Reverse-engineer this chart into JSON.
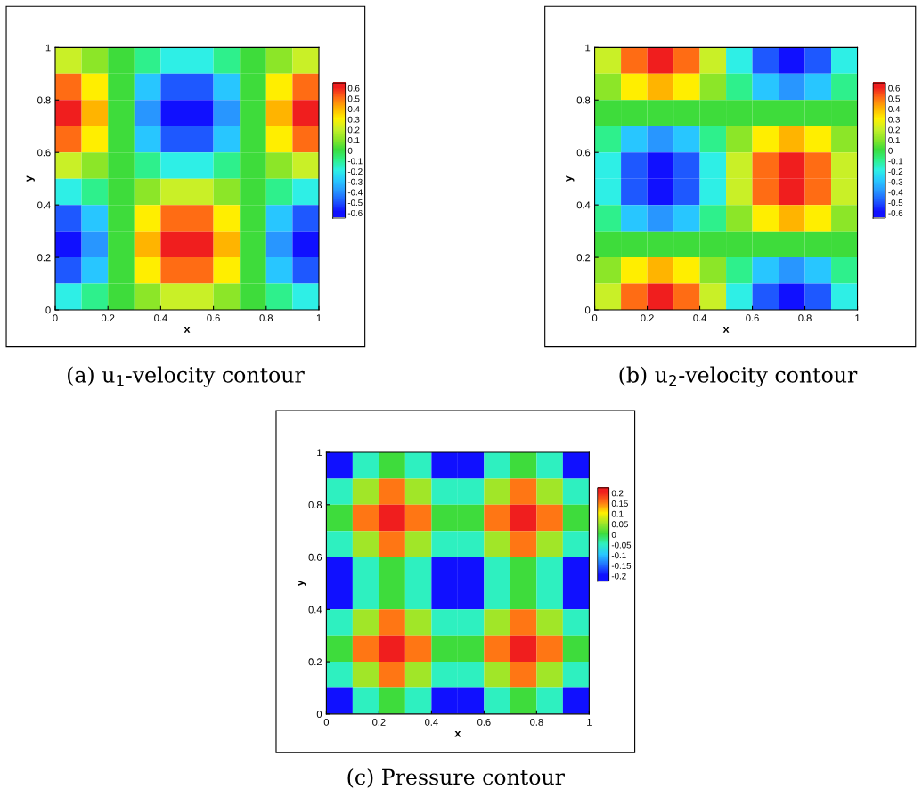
{
  "chart_data": [
    {
      "type": "heatmap",
      "xlabel": "x",
      "ylabel": "y",
      "annotations": [
        "(a) u$_{1}$-velocity contour"
      ],
      "x": [
        0.05,
        0.15,
        0.25,
        0.35,
        0.45,
        0.55,
        0.65,
        0.75,
        0.85,
        0.95
      ],
      "y": [
        0.95,
        0.85,
        0.75,
        0.65,
        0.55,
        0.45,
        0.35,
        0.25,
        0.15,
        0.05
      ],
      "xlim": [
        0,
        1
      ],
      "ylim": [
        0,
        1
      ],
      "xticks": [
        0,
        0.2,
        0.4,
        0.6,
        0.8,
        1
      ],
      "yticks": [
        0,
        0.2,
        0.4,
        0.6,
        0.8,
        1
      ],
      "cells": [
        [
          0.2,
          0.1,
          0,
          -0.1,
          -0.2,
          -0.2,
          -0.1,
          0,
          0.1,
          0.2
        ],
        [
          0.5,
          0.3,
          0,
          -0.3,
          -0.5,
          -0.5,
          -0.3,
          0,
          0.3,
          0.5
        ],
        [
          0.6,
          0.4,
          0,
          -0.4,
          -0.6,
          -0.6,
          -0.4,
          0,
          0.4,
          0.6
        ],
        [
          0.5,
          0.3,
          0,
          -0.3,
          -0.5,
          -0.5,
          -0.3,
          0,
          0.3,
          0.5
        ],
        [
          0.2,
          0.1,
          0,
          -0.1,
          -0.2,
          -0.2,
          -0.1,
          0,
          0.1,
          0.2
        ],
        [
          -0.2,
          -0.1,
          0,
          0.1,
          0.2,
          0.2,
          0.1,
          0,
          -0.1,
          -0.2
        ],
        [
          -0.5,
          -0.3,
          0,
          0.3,
          0.5,
          0.5,
          0.3,
          0,
          -0.3,
          -0.5
        ],
        [
          -0.6,
          -0.4,
          0,
          0.4,
          0.6,
          0.6,
          0.4,
          0,
          -0.4,
          -0.6
        ],
        [
          -0.5,
          -0.3,
          0,
          0.3,
          0.5,
          0.5,
          0.3,
          0,
          -0.3,
          -0.5
        ],
        [
          -0.2,
          -0.1,
          0,
          0.1,
          0.2,
          0.2,
          0.1,
          0,
          -0.1,
          -0.2
        ]
      ],
      "clim": [
        -0.65,
        0.65
      ],
      "cticks": [
        -0.6,
        -0.5,
        -0.4,
        -0.3,
        -0.2,
        -0.1,
        0,
        0.1,
        0.2,
        0.3,
        0.4,
        0.5,
        0.6
      ],
      "colors": [
        "#1010ff",
        "#1e5aff",
        "#2896ff",
        "#28c8ff",
        "#2ef0e6",
        "#2ef08c",
        "#3cdc3c",
        "#8ce628",
        "#c8f028",
        "#fff000",
        "#ffb400",
        "#ff6e14",
        "#f01e1e"
      ]
    },
    {
      "type": "heatmap",
      "xlabel": "x",
      "ylabel": "y",
      "annotations": [
        "(b) u$_{2}$-velocity contour"
      ],
      "x": [
        0.05,
        0.15,
        0.25,
        0.35,
        0.45,
        0.55,
        0.65,
        0.75,
        0.85,
        0.95
      ],
      "y": [
        0.95,
        0.85,
        0.75,
        0.65,
        0.55,
        0.45,
        0.35,
        0.25,
        0.15,
        0.05
      ],
      "xlim": [
        0,
        1
      ],
      "ylim": [
        0,
        1
      ],
      "xticks": [
        0,
        0.2,
        0.4,
        0.6,
        0.8,
        1
      ],
      "yticks": [
        0,
        0.2,
        0.4,
        0.6,
        0.8,
        1
      ],
      "cells": [
        [
          0.2,
          0.5,
          0.6,
          0.5,
          0.2,
          -0.2,
          -0.5,
          -0.6,
          -0.5,
          -0.2
        ],
        [
          0.1,
          0.3,
          0.4,
          0.3,
          0.1,
          -0.1,
          -0.3,
          -0.4,
          -0.3,
          -0.1
        ],
        [
          0,
          0,
          0,
          0,
          0,
          0,
          0,
          0,
          0,
          0
        ],
        [
          -0.1,
          -0.3,
          -0.4,
          -0.3,
          -0.1,
          0.1,
          0.3,
          0.4,
          0.3,
          0.1
        ],
        [
          -0.2,
          -0.5,
          -0.6,
          -0.5,
          -0.2,
          0.2,
          0.5,
          0.6,
          0.5,
          0.2
        ],
        [
          -0.2,
          -0.5,
          -0.6,
          -0.5,
          -0.2,
          0.2,
          0.5,
          0.6,
          0.5,
          0.2
        ],
        [
          -0.1,
          -0.3,
          -0.4,
          -0.3,
          -0.1,
          0.1,
          0.3,
          0.4,
          0.3,
          0.1
        ],
        [
          0,
          0,
          0,
          0,
          0,
          0,
          0,
          0,
          0,
          0
        ],
        [
          0.1,
          0.3,
          0.4,
          0.3,
          0.1,
          -0.1,
          -0.3,
          -0.4,
          -0.3,
          -0.1
        ],
        [
          0.2,
          0.5,
          0.6,
          0.5,
          0.2,
          -0.2,
          -0.5,
          -0.6,
          -0.5,
          -0.2
        ]
      ],
      "clim": [
        -0.65,
        0.65
      ],
      "cticks": [
        -0.6,
        -0.5,
        -0.4,
        -0.3,
        -0.2,
        -0.1,
        0,
        0.1,
        0.2,
        0.3,
        0.4,
        0.5,
        0.6
      ],
      "colors": [
        "#1010ff",
        "#1e5aff",
        "#2896ff",
        "#28c8ff",
        "#2ef0e6",
        "#2ef08c",
        "#3cdc3c",
        "#8ce628",
        "#c8f028",
        "#fff000",
        "#ffb400",
        "#ff6e14",
        "#f01e1e"
      ]
    },
    {
      "type": "heatmap",
      "xlabel": "x",
      "ylabel": "y",
      "annotations": [
        "(c) Pressure contour"
      ],
      "x": [
        0.05,
        0.15,
        0.25,
        0.35,
        0.45,
        0.55,
        0.65,
        0.75,
        0.85,
        0.95
      ],
      "y": [
        0.95,
        0.85,
        0.75,
        0.65,
        0.55,
        0.45,
        0.35,
        0.25,
        0.15,
        0.05
      ],
      "xlim": [
        0,
        1
      ],
      "ylim": [
        0,
        1
      ],
      "xticks": [
        0,
        0.2,
        0.4,
        0.6,
        0.8,
        1
      ],
      "yticks": [
        0,
        0.2,
        0.4,
        0.6,
        0.8,
        1
      ],
      "cells": [
        [
          -0.2,
          -0.05,
          0,
          -0.05,
          -0.2,
          -0.2,
          -0.05,
          0,
          -0.05,
          -0.2
        ],
        [
          -0.05,
          0.05,
          0.15,
          0.05,
          -0.05,
          -0.05,
          0.05,
          0.15,
          0.05,
          -0.05
        ],
        [
          0,
          0.15,
          0.2,
          0.15,
          0,
          0,
          0.15,
          0.2,
          0.15,
          0
        ],
        [
          -0.05,
          0.05,
          0.15,
          0.05,
          -0.05,
          -0.05,
          0.05,
          0.15,
          0.05,
          -0.05
        ],
        [
          -0.2,
          -0.05,
          0,
          -0.05,
          -0.2,
          -0.2,
          -0.05,
          0,
          -0.05,
          -0.2
        ],
        [
          -0.2,
          -0.05,
          0,
          -0.05,
          -0.2,
          -0.2,
          -0.05,
          0,
          -0.05,
          -0.2
        ],
        [
          -0.05,
          0.05,
          0.15,
          0.05,
          -0.05,
          -0.05,
          0.05,
          0.15,
          0.05,
          -0.05
        ],
        [
          0,
          0.15,
          0.2,
          0.15,
          0,
          0,
          0.15,
          0.2,
          0.15,
          0
        ],
        [
          -0.05,
          0.05,
          0.15,
          0.05,
          -0.05,
          -0.05,
          0.05,
          0.15,
          0.05,
          -0.05
        ],
        [
          -0.2,
          -0.05,
          0,
          -0.05,
          -0.2,
          -0.2,
          -0.05,
          0,
          -0.05,
          -0.2
        ]
      ],
      "clim": [
        -0.225,
        0.225
      ],
      "cticks": [
        -0.2,
        -0.15,
        -0.1,
        -0.05,
        0,
        0.05,
        0.1,
        0.15,
        0.2
      ],
      "colors": [
        "#1010ff",
        "#2070ff",
        "#28c8ff",
        "#2ef0c0",
        "#3cdc3c",
        "#a0e628",
        "#fff000",
        "#ff7814",
        "#f01e1e"
      ]
    }
  ]
}
